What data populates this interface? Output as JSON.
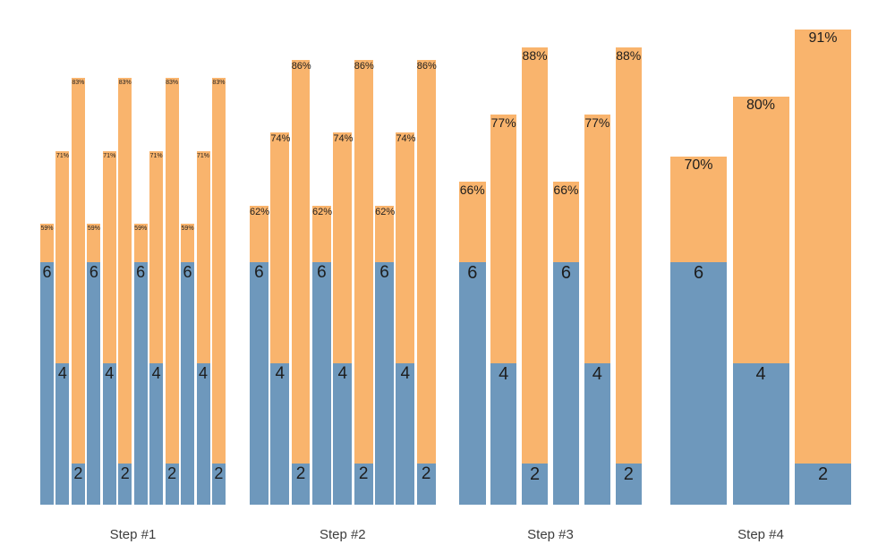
{
  "colors": {
    "bar_blue": "#6E98BC",
    "bar_orange": "#F9B46D",
    "label_text": "#1d1d1d",
    "step_label_text": "#3d3d3d",
    "background": "#ffffff"
  },
  "chart_data": {
    "type": "bar",
    "stacked": true,
    "grid": false,
    "axes_visible": false,
    "legend": false,
    "segment_colors": {
      "bottom_blue": "#6E98BC",
      "top_orange": "#F9B46D"
    },
    "groups": [
      {
        "label": "Step #1",
        "bars": [
          {
            "count": 6,
            "count_label": "6",
            "percent": 59,
            "percent_label": "59%"
          },
          {
            "count": 4,
            "count_label": "4",
            "percent": 71,
            "percent_label": "71%"
          },
          {
            "count": 2,
            "count_label": "2",
            "percent": 83,
            "percent_label": "83%"
          },
          {
            "count": 6,
            "count_label": "6",
            "percent": 59,
            "percent_label": "59%"
          },
          {
            "count": 4,
            "count_label": "4",
            "percent": 71,
            "percent_label": "71%"
          },
          {
            "count": 2,
            "count_label": "2",
            "percent": 83,
            "percent_label": "83%"
          },
          {
            "count": 6,
            "count_label": "6",
            "percent": 59,
            "percent_label": "59%"
          },
          {
            "count": 4,
            "count_label": "4",
            "percent": 71,
            "percent_label": "71%"
          },
          {
            "count": 2,
            "count_label": "2",
            "percent": 83,
            "percent_label": "83%"
          },
          {
            "count": 6,
            "count_label": "6",
            "percent": 59,
            "percent_label": "59%"
          },
          {
            "count": 4,
            "count_label": "4",
            "percent": 71,
            "percent_label": "71%"
          },
          {
            "count": 2,
            "count_label": "2",
            "percent": 83,
            "percent_label": "83%"
          }
        ]
      },
      {
        "label": "Step #2",
        "bars": [
          {
            "count": 6,
            "count_label": "6",
            "percent": 62,
            "percent_label": "62%"
          },
          {
            "count": 4,
            "count_label": "4",
            "percent": 74,
            "percent_label": "74%"
          },
          {
            "count": 2,
            "count_label": "2",
            "percent": 86,
            "percent_label": "86%"
          },
          {
            "count": 6,
            "count_label": "6",
            "percent": 62,
            "percent_label": "62%"
          },
          {
            "count": 4,
            "count_label": "4",
            "percent": 74,
            "percent_label": "74%"
          },
          {
            "count": 2,
            "count_label": "2",
            "percent": 86,
            "percent_label": "86%"
          },
          {
            "count": 6,
            "count_label": "6",
            "percent": 62,
            "percent_label": "62%"
          },
          {
            "count": 4,
            "count_label": "4",
            "percent": 74,
            "percent_label": "74%"
          },
          {
            "count": 2,
            "count_label": "2",
            "percent": 86,
            "percent_label": "86%"
          }
        ]
      },
      {
        "label": "Step #3",
        "bars": [
          {
            "count": 6,
            "count_label": "6",
            "percent": 66,
            "percent_label": "66%"
          },
          {
            "count": 4,
            "count_label": "4",
            "percent": 77,
            "percent_label": "77%"
          },
          {
            "count": 2,
            "count_label": "2",
            "percent": 88,
            "percent_label": "88%"
          },
          {
            "count": 6,
            "count_label": "6",
            "percent": 66,
            "percent_label": "66%"
          },
          {
            "count": 4,
            "count_label": "4",
            "percent": 77,
            "percent_label": "77%"
          },
          {
            "count": 2,
            "count_label": "2",
            "percent": 88,
            "percent_label": "88%"
          }
        ]
      },
      {
        "label": "Step #4",
        "bars": [
          {
            "count": 6,
            "count_label": "6",
            "percent": 70,
            "percent_label": "70%"
          },
          {
            "count": 4,
            "count_label": "4",
            "percent": 80,
            "percent_label": "80%"
          },
          {
            "count": 2,
            "count_label": "2",
            "percent": 91,
            "percent_label": "91%"
          }
        ]
      }
    ]
  }
}
